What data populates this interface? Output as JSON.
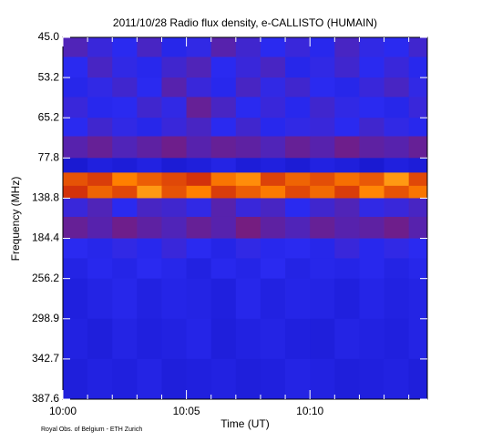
{
  "chart_data": {
    "type": "spectrogram",
    "title": "2011/10/28  Radio flux density, e-CALLISTO (HUMAIN)",
    "x_label": "Time (UT)",
    "y_label": "Frequency (MHz)",
    "note": "Royal Obs. of Belgium - ETH Zurich",
    "xlim": [
      0,
      14.75
    ],
    "xticks": [
      {
        "value": 0,
        "label": "10:00"
      },
      {
        "value": 5,
        "label": "10:05"
      },
      {
        "value": 10,
        "label": "10:10"
      }
    ],
    "xminorticks": [
      1,
      2,
      3,
      4,
      6,
      7,
      8,
      9,
      11,
      12,
      13,
      14
    ],
    "ylim": [
      45,
      387.6
    ],
    "yreverse": true,
    "yticks": [
      {
        "value": 45,
        "label": "45.0"
      },
      53.2,
      65.2,
      77.8,
      138.8,
      184.4,
      256.2,
      298.9,
      342.7,
      387.6
    ],
    "colorscale": [
      "#000050",
      "#0a0ab4",
      "#2a2af0",
      "#c01010",
      "#ff8000",
      "#ffff60"
    ],
    "xbins": [
      0,
      1,
      2,
      3,
      4,
      5,
      6,
      7,
      8,
      9,
      10,
      11,
      12,
      13,
      14,
      14.75
    ],
    "ybins": [
      45,
      49,
      53.2,
      59,
      65.2,
      71,
      77.8,
      100,
      120,
      138.8,
      160,
      184.4,
      220,
      256.2,
      298.9,
      342.7,
      387.6
    ],
    "z": [
      [
        0.45,
        0.42,
        0.4,
        0.44,
        0.38,
        0.41,
        0.46,
        0.43,
        0.4,
        0.42,
        0.39,
        0.44,
        0.41,
        0.4,
        0.43
      ],
      [
        0.4,
        0.44,
        0.41,
        0.39,
        0.43,
        0.45,
        0.4,
        0.42,
        0.44,
        0.38,
        0.41,
        0.43,
        0.4,
        0.42,
        0.39
      ],
      [
        0.38,
        0.41,
        0.43,
        0.4,
        0.46,
        0.42,
        0.39,
        0.44,
        0.41,
        0.43,
        0.4,
        0.38,
        0.42,
        0.44,
        0.41
      ],
      [
        0.42,
        0.39,
        0.4,
        0.43,
        0.41,
        0.48,
        0.44,
        0.4,
        0.42,
        0.39,
        0.43,
        0.41,
        0.4,
        0.38,
        0.42
      ],
      [
        0.4,
        0.43,
        0.41,
        0.38,
        0.42,
        0.44,
        0.4,
        0.43,
        0.39,
        0.41,
        0.42,
        0.4,
        0.43,
        0.41,
        0.39
      ],
      [
        0.46,
        0.48,
        0.45,
        0.47,
        0.49,
        0.46,
        0.48,
        0.47,
        0.45,
        0.48,
        0.46,
        0.49,
        0.47,
        0.46,
        0.48
      ],
      [
        0.3,
        0.34,
        0.32,
        0.35,
        0.31,
        0.33,
        0.36,
        0.32,
        0.34,
        0.31,
        0.35,
        0.33,
        0.3,
        0.34,
        0.32
      ],
      [
        0.72,
        0.68,
        0.8,
        0.74,
        0.7,
        0.66,
        0.78,
        0.82,
        0.69,
        0.75,
        0.71,
        0.77,
        0.73,
        0.84,
        0.7
      ],
      [
        0.66,
        0.75,
        0.7,
        0.84,
        0.72,
        0.8,
        0.68,
        0.74,
        0.79,
        0.7,
        0.76,
        0.68,
        0.81,
        0.72,
        0.78
      ],
      [
        0.42,
        0.45,
        0.4,
        0.44,
        0.43,
        0.41,
        0.46,
        0.42,
        0.44,
        0.4,
        0.43,
        0.45,
        0.41,
        0.42,
        0.44
      ],
      [
        0.48,
        0.46,
        0.49,
        0.47,
        0.45,
        0.48,
        0.46,
        0.5,
        0.47,
        0.45,
        0.48,
        0.46,
        0.47,
        0.49,
        0.46
      ],
      [
        0.4,
        0.38,
        0.41,
        0.39,
        0.42,
        0.4,
        0.37,
        0.41,
        0.39,
        0.4,
        0.38,
        0.42,
        0.39,
        0.41,
        0.4
      ],
      [
        0.36,
        0.39,
        0.37,
        0.4,
        0.38,
        0.35,
        0.39,
        0.37,
        0.4,
        0.36,
        0.38,
        0.37,
        0.39,
        0.36,
        0.38
      ],
      [
        0.34,
        0.36,
        0.38,
        0.35,
        0.37,
        0.36,
        0.34,
        0.38,
        0.35,
        0.37,
        0.36,
        0.34,
        0.37,
        0.35,
        0.36
      ],
      [
        0.35,
        0.33,
        0.36,
        0.34,
        0.35,
        0.37,
        0.33,
        0.35,
        0.36,
        0.34,
        0.33,
        0.36,
        0.35,
        0.34,
        0.36
      ],
      [
        0.33,
        0.35,
        0.34,
        0.36,
        0.33,
        0.34,
        0.35,
        0.33,
        0.34,
        0.36,
        0.35,
        0.33,
        0.34,
        0.35,
        0.33
      ]
    ]
  }
}
